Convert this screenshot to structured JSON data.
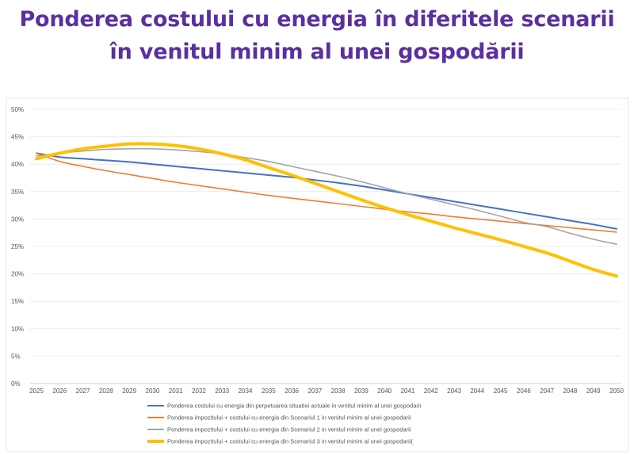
{
  "title": {
    "line1": "Ponderea costului cu energia în diferitele scenarii",
    "line2": "în venitul minim al unei gospodării"
  },
  "chart_data": {
    "type": "line",
    "x": [
      2025,
      2026,
      2027,
      2028,
      2029,
      2030,
      2031,
      2032,
      2033,
      2034,
      2035,
      2036,
      2037,
      2038,
      2039,
      2040,
      2041,
      2042,
      2043,
      2044,
      2045,
      2046,
      2047,
      2048,
      2049,
      2050
    ],
    "ylim": [
      0,
      50
    ],
    "yticks": [
      "0%",
      "5%",
      "10%",
      "15%",
      "20%",
      "25%",
      "30%",
      "35%",
      "40%",
      "45%",
      "50%"
    ],
    "grid": true,
    "legend_position": "bottom",
    "series": [
      {
        "name": "Ponderea costului cu energia din perpetuarea situatiei actuale in venitul minim al unei gospodarii",
        "color": "#4472c4",
        "values": [
          42.0,
          41.3,
          41.0,
          40.7,
          40.4,
          40.0,
          39.6,
          39.2,
          38.8,
          38.4,
          38.0,
          37.6,
          37.1,
          36.6,
          36.0,
          35.3,
          34.6,
          33.9,
          33.2,
          32.5,
          31.8,
          31.1,
          30.4,
          29.7,
          29.0,
          28.2
        ]
      },
      {
        "name": "Ponderea impozitului + costului cu energia din Scenariul 1 in venitul minim al unei gospodarii",
        "color": "#ed7d31",
        "values": [
          42.0,
          40.5,
          39.6,
          38.8,
          38.1,
          37.4,
          36.7,
          36.1,
          35.5,
          34.9,
          34.3,
          33.8,
          33.3,
          32.8,
          32.3,
          31.8,
          31.3,
          30.9,
          30.4,
          30.0,
          29.6,
          29.2,
          28.8,
          28.4,
          28.0,
          27.6
        ]
      },
      {
        "name": "Ponderea impozitului + costului cu energia din Scenariul 2 in venitul minim al unei gospodarii",
        "color": "#a5a5a5",
        "values": [
          41.5,
          42.0,
          42.4,
          42.7,
          42.8,
          42.8,
          42.6,
          42.3,
          41.9,
          41.2,
          40.5,
          39.6,
          38.7,
          37.8,
          36.8,
          35.7,
          34.6,
          33.6,
          32.6,
          31.6,
          30.5,
          29.4,
          28.6,
          27.4,
          26.3,
          25.4
        ]
      },
      {
        "name": "Ponderea impozitului + costului cu energia din Scenariul 3 in venitul minim al unei gospodarii(",
        "color": "#ffc000",
        "values": [
          41.0,
          42.0,
          42.8,
          43.3,
          43.7,
          43.7,
          43.4,
          42.8,
          41.9,
          40.8,
          39.4,
          38.0,
          36.5,
          35.0,
          33.5,
          32.1,
          30.8,
          29.6,
          28.4,
          27.3,
          26.2,
          25.0,
          23.8,
          22.3,
          20.8,
          19.6
        ]
      }
    ]
  }
}
